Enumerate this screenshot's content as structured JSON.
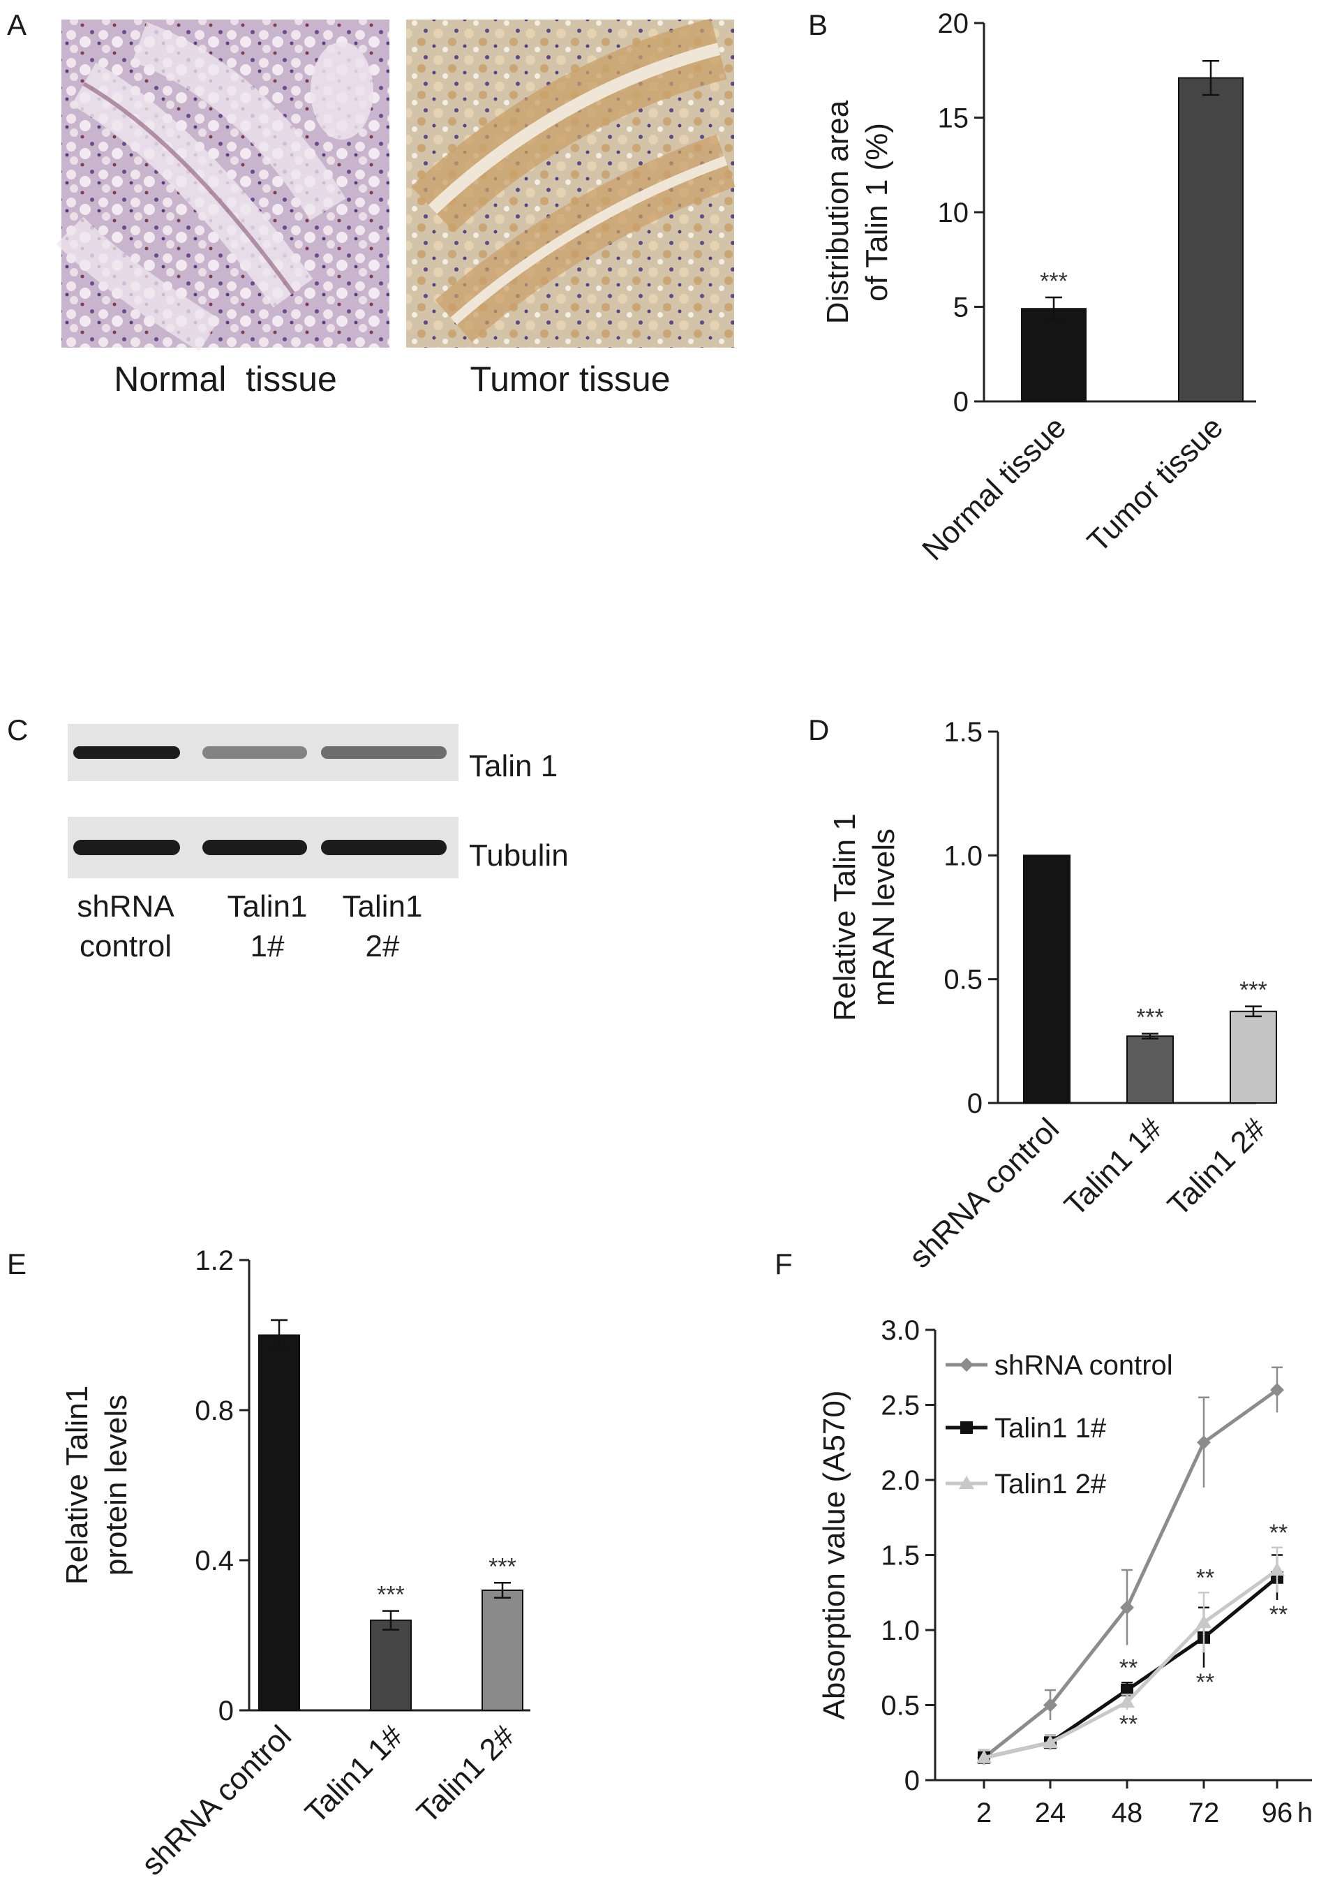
{
  "figure": {
    "panel_letters": [
      "A",
      "B",
      "C",
      "D",
      "E",
      "F"
    ]
  },
  "panel_a": {
    "labels": [
      "Normal  tissue",
      "Tumor tissue"
    ]
  },
  "panel_c": {
    "bands": [
      "Talin 1",
      "Tubulin"
    ],
    "lanes": [
      {
        "line1": "shRNA",
        "line2": "control"
      },
      {
        "line1": "Talin1",
        "line2": "1#"
      },
      {
        "line1": "Talin1",
        "line2": "2#"
      }
    ],
    "talin_band_intensity": [
      1.0,
      0.3,
      0.45
    ],
    "tubulin_band_intensity": [
      1.0,
      1.0,
      1.0
    ]
  },
  "colors": {
    "bar_black": "#141414",
    "bar_dark": "#454545",
    "bar_mid": "#5c5c5c",
    "bar_light": "#c4c4c4",
    "bar_gray": "#8a8a8a",
    "line_control": "#8c8c8c",
    "line_talin1": "#111111",
    "line_talin2": "#c8c8c8"
  },
  "chart_data": [
    {
      "id": "B",
      "type": "bar",
      "categories": [
        "Normal tissue",
        "Tumor tissue"
      ],
      "values": [
        4.9,
        17.1
      ],
      "errors": [
        0.6,
        0.9
      ],
      "significance": [
        "***",
        ""
      ],
      "ylabel_lines": [
        "Distribution area",
        "of Talin 1 (%)"
      ],
      "ylim": [
        0,
        20
      ],
      "yticks": [
        "0",
        "5",
        "10",
        "15",
        "20"
      ],
      "bar_colors": [
        "#141414",
        "#454545"
      ]
    },
    {
      "id": "D",
      "type": "bar",
      "categories": [
        "shRNA control",
        "Talin1 1#",
        "Talin1 2#"
      ],
      "values": [
        1.0,
        0.27,
        0.37
      ],
      "errors": [
        0.0,
        0.01,
        0.02
      ],
      "significance": [
        "",
        "***",
        "***"
      ],
      "ylabel_lines": [
        "Relative Talin 1",
        "mRAN levels"
      ],
      "ylim": [
        0,
        1.5
      ],
      "yticks": [
        "0",
        "0.5",
        "1.0",
        "1.5"
      ],
      "bar_colors": [
        "#141414",
        "#5c5c5c",
        "#c4c4c4"
      ]
    },
    {
      "id": "E",
      "type": "bar",
      "categories": [
        "shRNA control",
        "Talin1 1#",
        "Talin1 2#"
      ],
      "values": [
        1.0,
        0.24,
        0.32
      ],
      "errors": [
        0.04,
        0.025,
        0.02
      ],
      "significance": [
        "",
        "***",
        "***"
      ],
      "ylabel_lines": [
        "Relative Talin1",
        "protein levels"
      ],
      "ylim": [
        0,
        1.2
      ],
      "yticks": [
        "0",
        "0.4",
        "0.8",
        "1.2"
      ],
      "bar_colors": [
        "#141414",
        "#454545",
        "#8a8a8a"
      ]
    },
    {
      "id": "F",
      "type": "line",
      "x": [
        "2",
        "24",
        "48",
        "72",
        "96"
      ],
      "xunit": "h",
      "ylabel": "Absorption value (A570)",
      "ylim": [
        0,
        3.0
      ],
      "yticks": [
        "0",
        "0.5",
        "1.0",
        "1.5",
        "2.0",
        "2.5",
        "3.0"
      ],
      "legend_position": "top-left",
      "series": [
        {
          "name": "shRNA control",
          "values": [
            0.15,
            0.5,
            1.15,
            2.25,
            2.6
          ],
          "errors": [
            0.05,
            0.1,
            0.25,
            0.3,
            0.15
          ],
          "marker": "diamond"
        },
        {
          "name": "Talin1 1#",
          "values": [
            0.15,
            0.25,
            0.6,
            0.95,
            1.35
          ],
          "errors": [
            0.05,
            0.05,
            0.05,
            0.2,
            0.15
          ],
          "marker": "square"
        },
        {
          "name": "Talin1 2#",
          "values": [
            0.15,
            0.25,
            0.52,
            1.05,
            1.4
          ],
          "errors": [
            0.05,
            0.05,
            0.05,
            0.2,
            0.15
          ],
          "marker": "triangle"
        }
      ],
      "annotations": [
        {
          "x": "48",
          "above": "**",
          "below": "**"
        },
        {
          "x": "72",
          "above": "**",
          "below": "**"
        },
        {
          "x": "96",
          "above": "**",
          "below": "**"
        }
      ]
    }
  ]
}
